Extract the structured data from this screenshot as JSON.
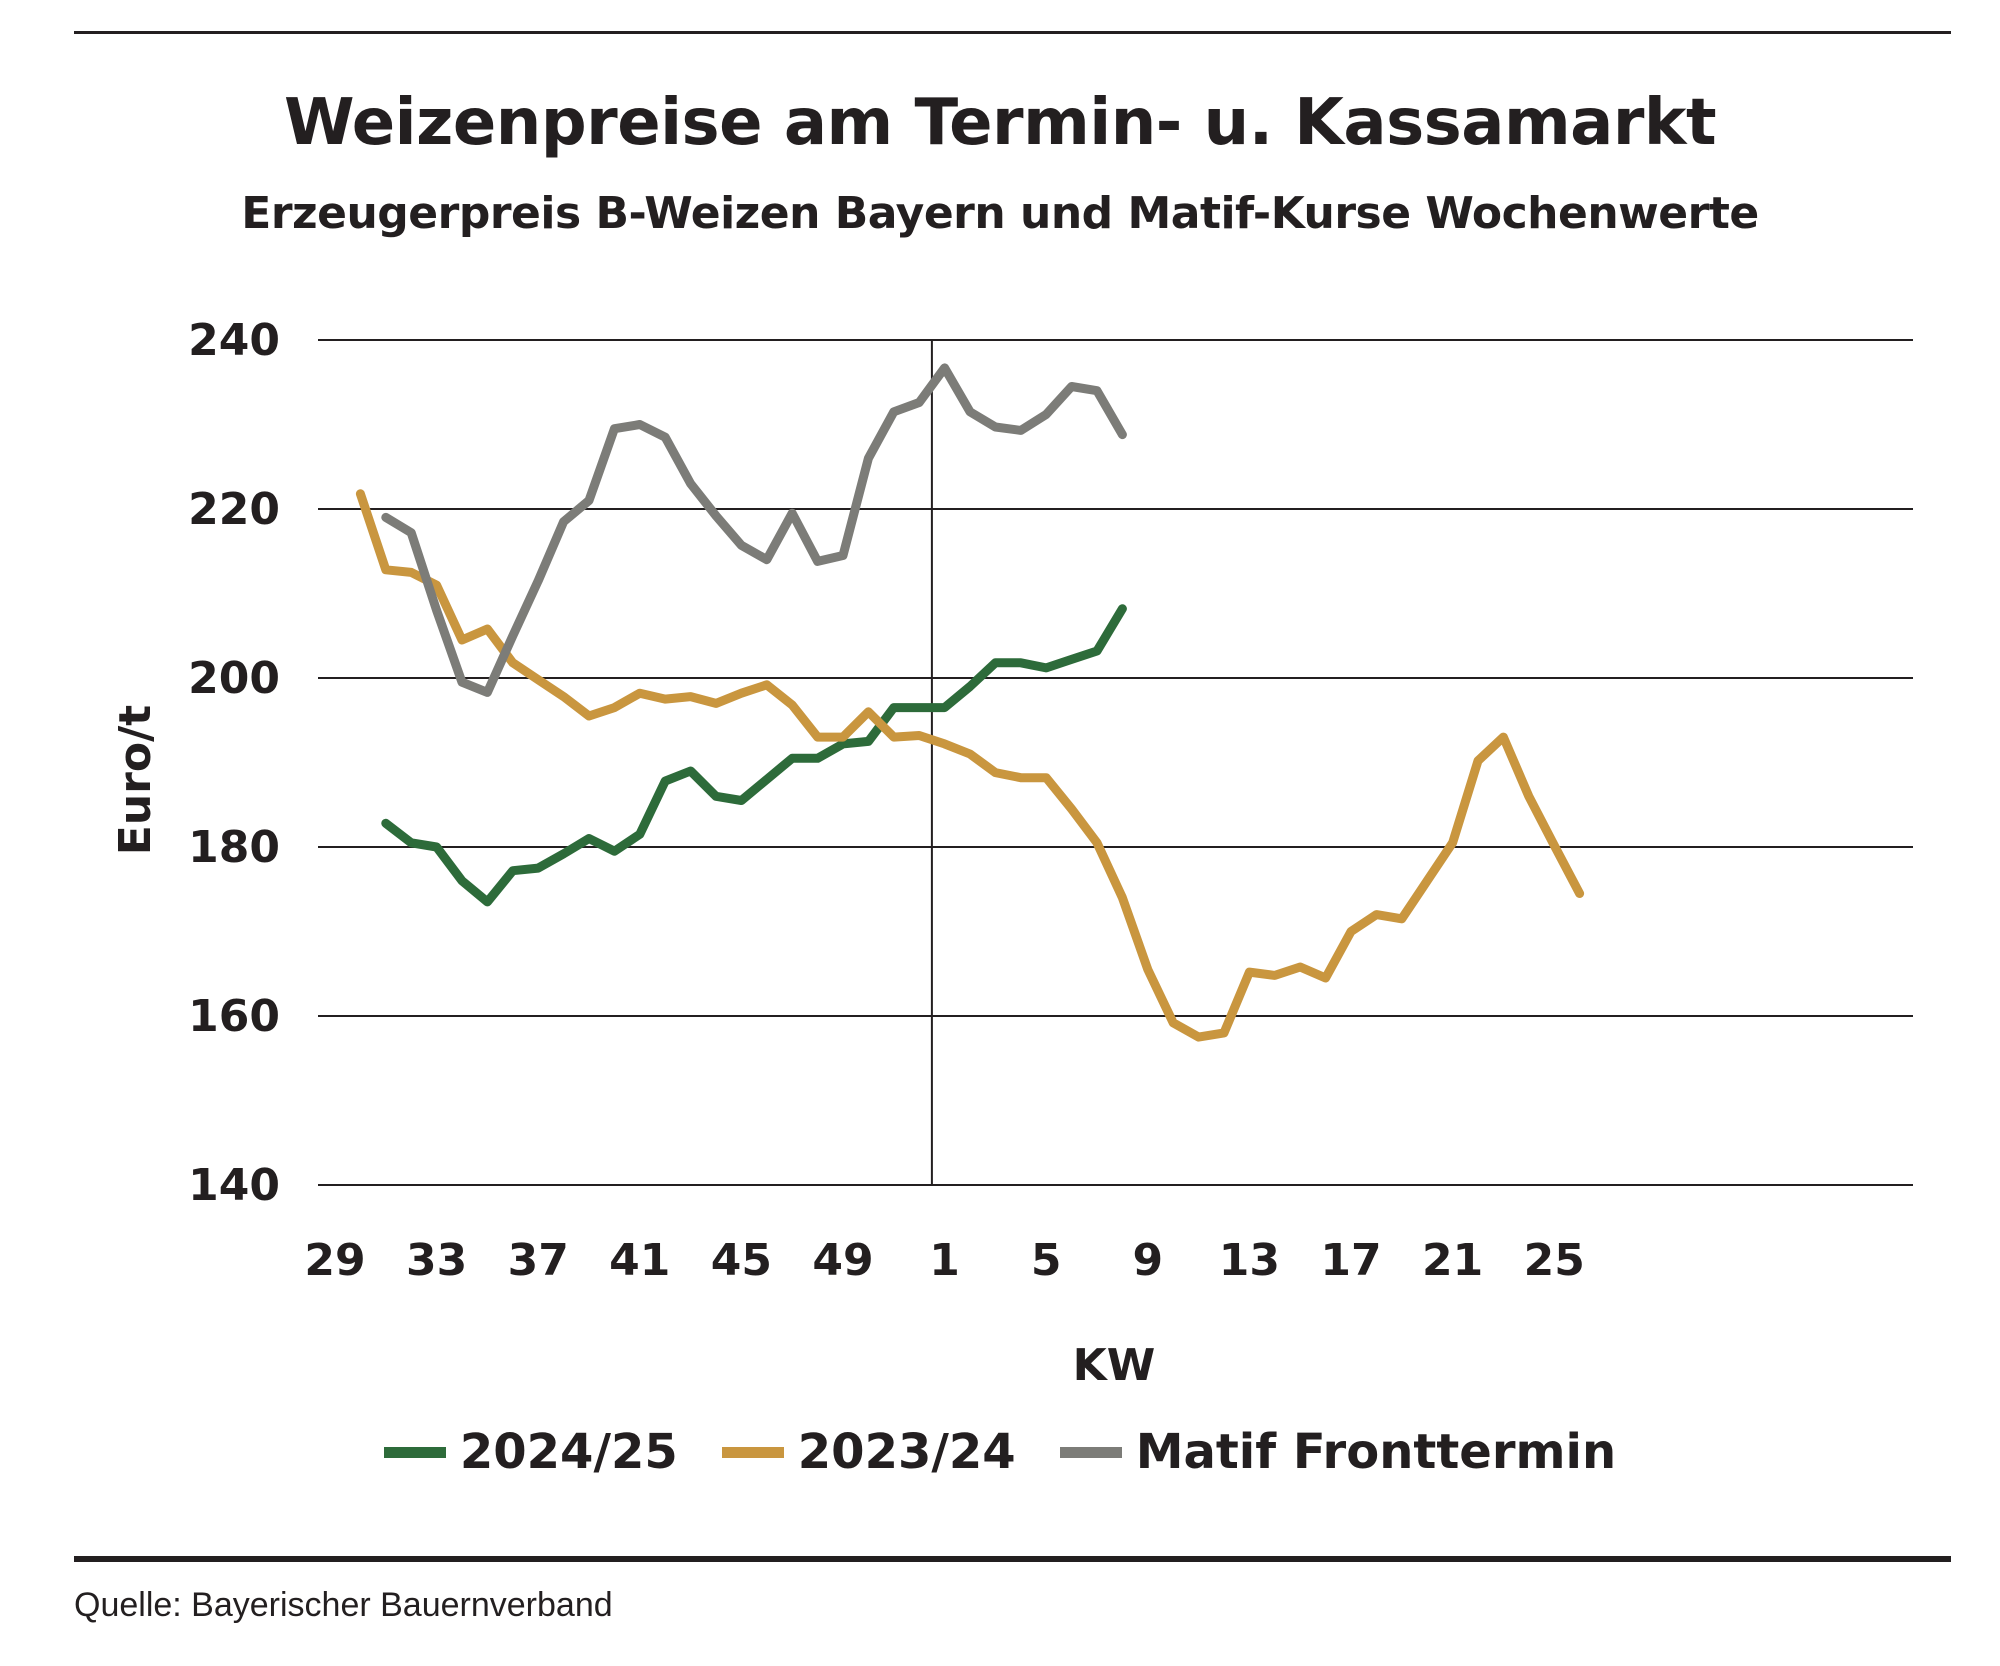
{
  "header": {
    "title": "Weizenpreise am Termin- u. Kassamarkt",
    "subtitle": "Erzeugerpreis B-Weizen Bayern und Matif-Kurse Wochenwerte"
  },
  "footer": {
    "source": "Quelle: Bayerischer Bauernverband"
  },
  "chart_data": {
    "type": "line",
    "title": "Weizenpreise am Termin- u. Kassamarkt",
    "subtitle": "Erzeugerpreis B-Weizen Bayern und Matif-Kurse Wochenwerte",
    "xlabel": "KW",
    "ylabel": "Euro/t",
    "ylim": [
      140,
      240
    ],
    "yticks": [
      "240",
      "220",
      "200",
      "180",
      "160",
      "140"
    ],
    "xtick_labels": [
      "29",
      "33",
      "37",
      "41",
      "45",
      "49",
      "1",
      "5",
      "9",
      "13",
      "17",
      "21",
      "25"
    ],
    "x_weeks": [
      "29",
      "30",
      "31",
      "32",
      "33",
      "34",
      "35",
      "36",
      "37",
      "38",
      "39",
      "40",
      "41",
      "42",
      "43",
      "44",
      "45",
      "46",
      "47",
      "48",
      "49",
      "50",
      "51",
      "52",
      "1",
      "2",
      "3",
      "4",
      "5",
      "6",
      "7",
      "8",
      "9",
      "10",
      "11",
      "12",
      "13",
      "14",
      "15",
      "16",
      "17",
      "18",
      "19",
      "20",
      "21",
      "22",
      "23",
      "24",
      "25",
      "26"
    ],
    "year_divider_after_week": "52",
    "grid": "horizontal",
    "legend_position": "bottom",
    "series": [
      {
        "name": "2024/25",
        "color": "#2d6b3a",
        "start_week": "31",
        "values": [
          182.8,
          180.5,
          180.0,
          176.0,
          173.5,
          177.2,
          177.5,
          179.2,
          181.0,
          179.5,
          181.5,
          187.8,
          189.0,
          186.0,
          185.5,
          188.0,
          190.5,
          190.5,
          192.2,
          192.5,
          196.5,
          196.5,
          196.5,
          199.0,
          201.8,
          201.8,
          201.2,
          202.2,
          203.2,
          208.2
        ]
      },
      {
        "name": "2023/24",
        "color": "#c9963f",
        "start_week": "30",
        "values": [
          221.8,
          212.8,
          212.5,
          211.0,
          204.5,
          205.8,
          201.8,
          199.8,
          197.8,
          195.5,
          196.5,
          198.2,
          197.5,
          197.8,
          197.0,
          198.2,
          199.2,
          196.8,
          193.0,
          193.0,
          196.0,
          193.0,
          193.2,
          192.2,
          191.0,
          188.8,
          188.2,
          188.2,
          184.5,
          180.5,
          174.0,
          165.5,
          159.2,
          157.5,
          158.0,
          165.2,
          164.8,
          165.8,
          164.5,
          170.0,
          172.0,
          171.5,
          176.0,
          180.5,
          190.2,
          193.0,
          186.0,
          180.2,
          174.5
        ]
      },
      {
        "name": "Matif Fronttermin",
        "color": "#7c7c78",
        "start_week": "31",
        "values": [
          219.0,
          217.2,
          208.0,
          199.5,
          198.3,
          205.0,
          211.5,
          218.5,
          221.0,
          229.5,
          230.0,
          228.5,
          223.0,
          219.2,
          215.7,
          214.0,
          219.5,
          213.8,
          214.5,
          226.0,
          231.5,
          232.6,
          236.7,
          231.5,
          229.7,
          229.3,
          231.2,
          234.5,
          234.0,
          228.8
        ]
      }
    ]
  }
}
